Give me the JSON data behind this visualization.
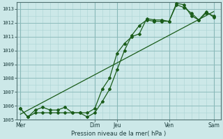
{
  "title": "Pression niveau de la mer( hPa )",
  "bg_color": "#cce8e8",
  "grid_color_major": "#88b8b8",
  "grid_color_minor": "#aad4d4",
  "line_color": "#1a5c1a",
  "ylim": [
    1005.0,
    1013.5
  ],
  "yticks": [
    1005,
    1006,
    1007,
    1008,
    1009,
    1010,
    1011,
    1012,
    1013
  ],
  "xtick_labels": [
    "Mer",
    "Dim",
    "Jeu",
    "Ven",
    "Sam"
  ],
  "xtick_positions": [
    0,
    10,
    13,
    20,
    26
  ],
  "vline_positions": [
    0,
    10,
    13,
    20,
    26
  ],
  "xlim": [
    -0.5,
    27
  ],
  "num_x_cells": 27,
  "series1_x": [
    0,
    1,
    2,
    3,
    4,
    5,
    6,
    7,
    8,
    9,
    10,
    11,
    12,
    13,
    14,
    15,
    16,
    17,
    18,
    19,
    20,
    21,
    22,
    23,
    24,
    25,
    26
  ],
  "series1_y": [
    1005.8,
    1005.2,
    1005.7,
    1005.9,
    1005.7,
    1005.7,
    1005.9,
    1005.5,
    1005.5,
    1005.5,
    1005.8,
    1007.2,
    1008.0,
    1009.8,
    1010.5,
    1011.0,
    1011.2,
    1012.3,
    1012.2,
    1012.2,
    1012.1,
    1013.4,
    1013.3,
    1012.5,
    1012.2,
    1012.7,
    1012.5
  ],
  "series2_x": [
    0,
    1,
    2,
    3,
    4,
    5,
    6,
    7,
    8,
    9,
    10,
    11,
    12,
    13,
    14,
    15,
    16,
    17,
    18,
    19,
    20,
    21,
    22,
    23,
    24,
    25,
    26
  ],
  "series2_y": [
    1005.8,
    1005.2,
    1005.5,
    1005.5,
    1005.5,
    1005.5,
    1005.5,
    1005.5,
    1005.5,
    1005.2,
    1005.5,
    1006.3,
    1007.2,
    1008.6,
    1010.0,
    1011.1,
    1011.8,
    1012.2,
    1012.1,
    1012.1,
    1012.1,
    1013.3,
    1013.1,
    1012.7,
    1012.2,
    1012.8,
    1012.4
  ],
  "series3_x": [
    0,
    26
  ],
  "series3_y": [
    1005.4,
    1012.8
  ]
}
